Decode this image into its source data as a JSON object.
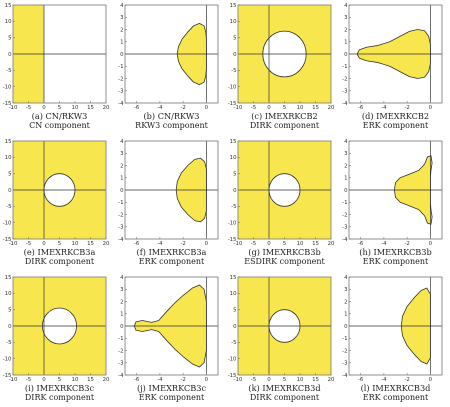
{
  "figure": {
    "fill_color": "#f7e64d",
    "line_color": "#333333",
    "frame_color": "#777777"
  },
  "chart_data": [
    {
      "type": "area",
      "caption": "(a) CN/RKW3",
      "subtitle": "CN component",
      "xlim": [
        -10,
        20
      ],
      "ylim": [
        -15,
        15
      ],
      "xticks": [
        -10,
        -5,
        0,
        5,
        10,
        15,
        20
      ],
      "yticks": [
        -15,
        -10,
        -5,
        0,
        5,
        10,
        15
      ],
      "region": {
        "shape": "half-plane",
        "x_max": 0
      }
    },
    {
      "type": "area",
      "caption": "(b) CN/RKW3",
      "subtitle": "RKW3 component",
      "xlim": [
        -7,
        1
      ],
      "ylim": [
        -4,
        4
      ],
      "xticks": [
        -6,
        -4,
        -2,
        0
      ],
      "yticks": [
        -4,
        -3,
        -2,
        -1,
        0,
        1,
        2,
        3,
        4
      ],
      "region": {
        "shape": "polygon",
        "points": [
          [
            -2.51,
            0
          ],
          [
            -2.4,
            0.6
          ],
          [
            -2.1,
            1.2
          ],
          [
            -1.6,
            1.8
          ],
          [
            -1.1,
            2.3
          ],
          [
            -0.6,
            2.5
          ],
          [
            -0.2,
            2.3
          ],
          [
            -0.05,
            1.8
          ],
          [
            0,
            1.2
          ],
          [
            0,
            0
          ],
          [
            0,
            -1.2
          ],
          [
            -0.05,
            -1.8
          ],
          [
            -0.2,
            -2.3
          ],
          [
            -0.6,
            -2.5
          ],
          [
            -1.1,
            -2.3
          ],
          [
            -1.6,
            -1.8
          ],
          [
            -2.1,
            -1.2
          ],
          [
            -2.4,
            -0.6
          ]
        ]
      }
    },
    {
      "type": "area",
      "caption": "(c) IMEXRKCB2",
      "subtitle": "DIRK component",
      "xlim": [
        -10,
        20
      ],
      "ylim": [
        -15,
        15
      ],
      "xticks": [
        -10,
        -5,
        0,
        5,
        10,
        15,
        20
      ],
      "yticks": [
        -15,
        -10,
        -5,
        0,
        5,
        10,
        15
      ],
      "region": {
        "shape": "complement-of-circle",
        "center": [
          5,
          0
        ],
        "radius": 7
      }
    },
    {
      "type": "area",
      "caption": "(d) IMEXRKCB2",
      "subtitle": "ERK component",
      "xlim": [
        -7,
        1
      ],
      "ylim": [
        -4,
        4
      ],
      "xticks": [
        -6,
        -4,
        -2,
        0
      ],
      "yticks": [
        -4,
        -3,
        -2,
        -1,
        0,
        1,
        2,
        3,
        4
      ],
      "region": {
        "shape": "polygon",
        "points": [
          [
            -6.3,
            0
          ],
          [
            -6.1,
            0.35
          ],
          [
            -5.5,
            0.55
          ],
          [
            -4.5,
            0.7
          ],
          [
            -3.5,
            1.0
          ],
          [
            -2.6,
            1.45
          ],
          [
            -1.8,
            1.85
          ],
          [
            -1.1,
            2.0
          ],
          [
            -0.5,
            1.9
          ],
          [
            -0.15,
            1.45
          ],
          [
            0,
            0.8
          ],
          [
            0,
            0
          ],
          [
            0,
            -0.8
          ],
          [
            -0.15,
            -1.45
          ],
          [
            -0.5,
            -1.9
          ],
          [
            -1.1,
            -2.0
          ],
          [
            -1.8,
            -1.85
          ],
          [
            -2.6,
            -1.45
          ],
          [
            -3.5,
            -1.0
          ],
          [
            -4.5,
            -0.7
          ],
          [
            -5.5,
            -0.55
          ],
          [
            -6.1,
            -0.35
          ]
        ]
      }
    },
    {
      "type": "area",
      "caption": "(e) IMEXRKCB3a",
      "subtitle": "DIRK component",
      "xlim": [
        -10,
        20
      ],
      "ylim": [
        -15,
        15
      ],
      "xticks": [
        -10,
        -5,
        0,
        5,
        10,
        15,
        20
      ],
      "yticks": [
        -15,
        -10,
        -5,
        0,
        5,
        10,
        15
      ],
      "region": {
        "shape": "complement-of-circle",
        "center": [
          5,
          0
        ],
        "radius": 5
      }
    },
    {
      "type": "area",
      "caption": "(f) IMEXRKCB3a",
      "subtitle": "ERK component",
      "xlim": [
        -7,
        1
      ],
      "ylim": [
        -4,
        4
      ],
      "xticks": [
        -6,
        -4,
        -2,
        0
      ],
      "yticks": [
        -4,
        -3,
        -2,
        -1,
        0,
        1,
        2,
        3,
        4
      ],
      "region": {
        "shape": "polygon",
        "points": [
          [
            -2.6,
            0
          ],
          [
            -2.5,
            0.7
          ],
          [
            -2.15,
            1.4
          ],
          [
            -1.6,
            2.0
          ],
          [
            -1.0,
            2.5
          ],
          [
            -0.5,
            2.6
          ],
          [
            -0.15,
            2.3
          ],
          [
            0,
            1.7
          ],
          [
            0,
            0
          ],
          [
            0,
            -1.7
          ],
          [
            -0.15,
            -2.3
          ],
          [
            -0.5,
            -2.6
          ],
          [
            -1.0,
            -2.5
          ],
          [
            -1.6,
            -2.0
          ],
          [
            -2.15,
            -1.4
          ],
          [
            -2.5,
            -0.7
          ]
        ]
      }
    },
    {
      "type": "area",
      "caption": "(g) IMEXRKCB3b",
      "subtitle": "ESDIRK component",
      "xlim": [
        -10,
        20
      ],
      "ylim": [
        -15,
        15
      ],
      "xticks": [
        -10,
        -5,
        0,
        5,
        10,
        15,
        20
      ],
      "yticks": [
        -15,
        -10,
        -5,
        0,
        5,
        10,
        15
      ],
      "region": {
        "shape": "complement-of-circle",
        "center": [
          5,
          0
        ],
        "radius": 5
      }
    },
    {
      "type": "area",
      "caption": "(h) IMEXRKCB3b",
      "subtitle": "ERK component",
      "xlim": [
        -7,
        1
      ],
      "ylim": [
        -4,
        4
      ],
      "xticks": [
        -6,
        -4,
        -2,
        0
      ],
      "yticks": [
        -4,
        -3,
        -2,
        -1,
        0,
        1,
        2,
        3,
        4
      ],
      "region": {
        "shape": "polygon",
        "points": [
          [
            -3.1,
            0
          ],
          [
            -3.0,
            0.6
          ],
          [
            -2.6,
            1.0
          ],
          [
            -1.8,
            1.3
          ],
          [
            -1.0,
            1.6
          ],
          [
            -0.5,
            2.1
          ],
          [
            -0.25,
            2.7
          ],
          [
            0.05,
            2.8
          ],
          [
            0.15,
            2.2
          ],
          [
            0.05,
            1.6
          ],
          [
            0,
            1.0
          ],
          [
            0,
            0
          ],
          [
            0,
            -1.0
          ],
          [
            0.05,
            -1.6
          ],
          [
            0.15,
            -2.2
          ],
          [
            0.05,
            -2.8
          ],
          [
            -0.25,
            -2.7
          ],
          [
            -0.5,
            -2.1
          ],
          [
            -1.0,
            -1.6
          ],
          [
            -1.8,
            -1.3
          ],
          [
            -2.6,
            -1.0
          ],
          [
            -3.0,
            -0.6
          ]
        ]
      }
    },
    {
      "type": "area",
      "caption": "(i) IMEXRKCB3c",
      "subtitle": "DIRK component",
      "xlim": [
        -10,
        20
      ],
      "ylim": [
        -15,
        15
      ],
      "xticks": [
        -10,
        -5,
        0,
        5,
        10,
        15,
        20
      ],
      "yticks": [
        -15,
        -10,
        -5,
        0,
        5,
        10,
        15
      ],
      "region": {
        "shape": "complement-of-circle",
        "center": [
          5,
          0
        ],
        "radius": 5.5
      }
    },
    {
      "type": "area",
      "caption": "(j) IMEXRKCB3c",
      "subtitle": "ERK component",
      "xlim": [
        -7,
        1
      ],
      "ylim": [
        -4,
        4
      ],
      "xticks": [
        -6,
        -4,
        -2,
        0
      ],
      "yticks": [
        -4,
        -3,
        -2,
        -1,
        0,
        1,
        2,
        3,
        4
      ],
      "region": {
        "shape": "polygon",
        "points": [
          [
            -6.2,
            0
          ],
          [
            -6.05,
            0.35
          ],
          [
            -5.5,
            0.45
          ],
          [
            -4.7,
            0.3
          ],
          [
            -4.1,
            0.45
          ],
          [
            -3.4,
            1.2
          ],
          [
            -2.7,
            1.9
          ],
          [
            -2.0,
            2.5
          ],
          [
            -1.2,
            3.1
          ],
          [
            -0.6,
            3.35
          ],
          [
            -0.2,
            3.0
          ],
          [
            0,
            2.0
          ],
          [
            0,
            0
          ],
          [
            0,
            -2.0
          ],
          [
            -0.2,
            -3.0
          ],
          [
            -0.6,
            -3.35
          ],
          [
            -1.2,
            -3.1
          ],
          [
            -2.0,
            -2.5
          ],
          [
            -2.7,
            -1.9
          ],
          [
            -3.4,
            -1.2
          ],
          [
            -4.1,
            -0.45
          ],
          [
            -4.7,
            -0.3
          ],
          [
            -5.5,
            -0.45
          ],
          [
            -6.05,
            -0.35
          ]
        ]
      }
    },
    {
      "type": "area",
      "caption": "(k) IMEXRKCB3d",
      "subtitle": "DIRK component",
      "xlim": [
        -10,
        20
      ],
      "ylim": [
        -15,
        15
      ],
      "xticks": [
        -10,
        -5,
        0,
        5,
        10,
        15,
        20
      ],
      "yticks": [
        -15,
        -10,
        -5,
        0,
        5,
        10,
        15
      ],
      "region": {
        "shape": "complement-of-circle",
        "center": [
          5,
          0
        ],
        "radius": 5
      }
    },
    {
      "type": "area",
      "caption": "(l) IMEXRKCB3d",
      "subtitle": "ERK component",
      "xlim": [
        -7,
        1
      ],
      "ylim": [
        -4,
        4
      ],
      "xticks": [
        -6,
        -4,
        -2,
        0
      ],
      "yticks": [
        -4,
        -3,
        -2,
        -1,
        0,
        1,
        2,
        3,
        4
      ],
      "region": {
        "shape": "polygon",
        "points": [
          [
            -2.5,
            0
          ],
          [
            -2.4,
            0.8
          ],
          [
            -2.0,
            1.6
          ],
          [
            -1.4,
            2.3
          ],
          [
            -0.8,
            2.9
          ],
          [
            -0.3,
            3.1
          ],
          [
            0,
            2.6
          ],
          [
            0,
            0
          ],
          [
            0,
            -2.6
          ],
          [
            -0.3,
            -3.1
          ],
          [
            -0.8,
            -2.9
          ],
          [
            -1.4,
            -2.3
          ],
          [
            -2.0,
            -1.6
          ],
          [
            -2.4,
            -0.8
          ]
        ]
      }
    }
  ]
}
